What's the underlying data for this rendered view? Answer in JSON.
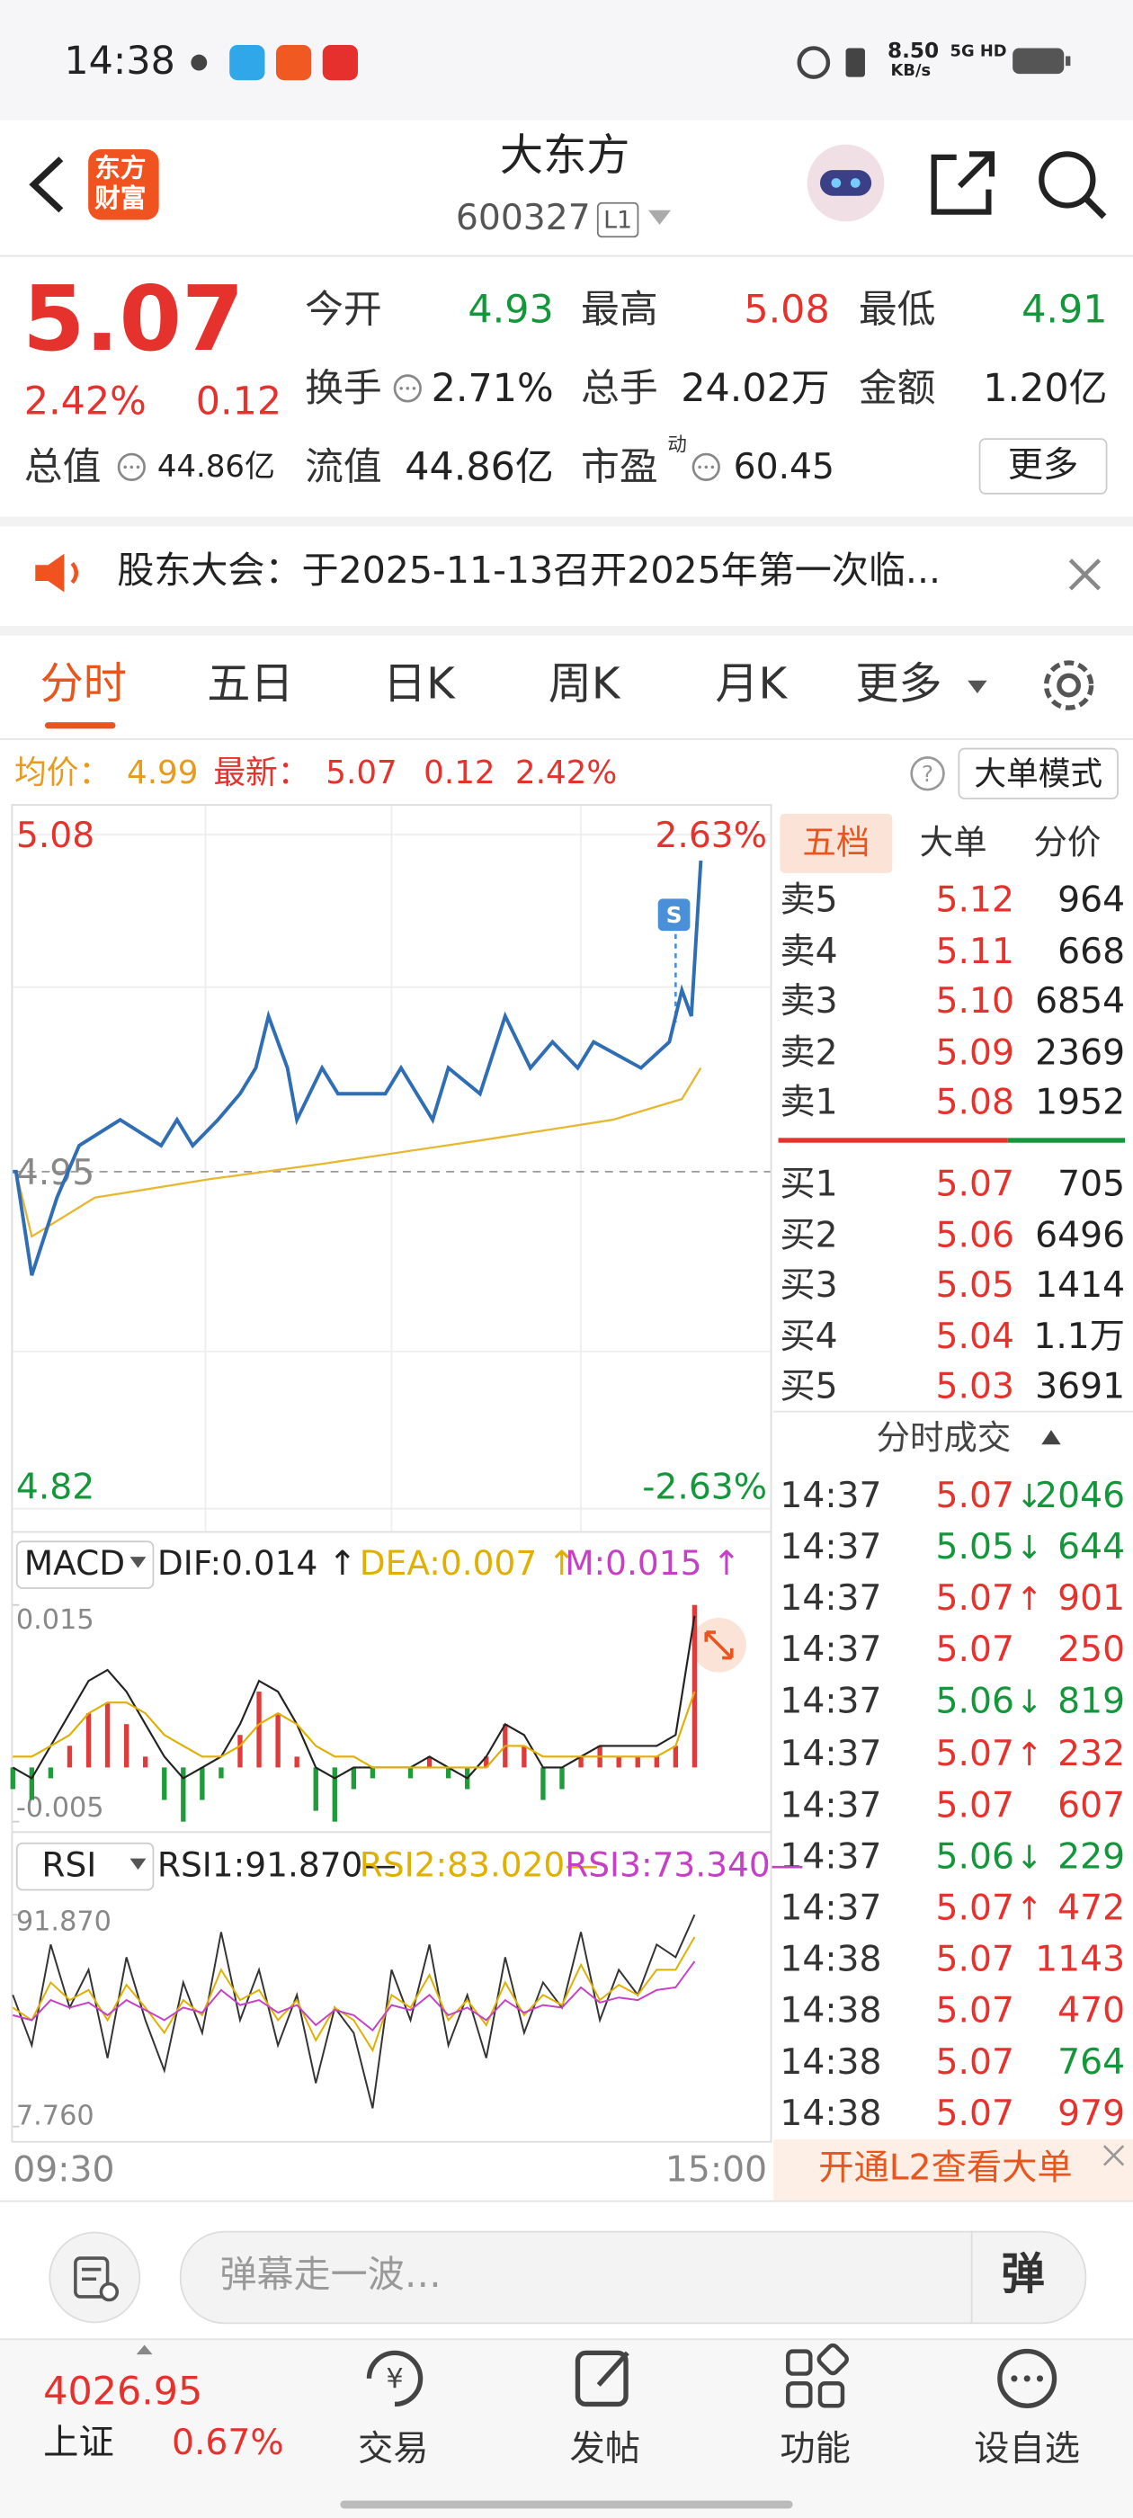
{
  "status_bar": {
    "time": "14:38",
    "speed": "8.50",
    "speed_unit": "KB/s",
    "network": "5G HD"
  },
  "header": {
    "logo": [
      "东方",
      "财富"
    ],
    "title": "大东方",
    "code": "600327",
    "level": "L1"
  },
  "quote": {
    "price": "5.07",
    "change_pct": "2.42%",
    "change": "0.12",
    "open_label": "今开",
    "open": "4.93",
    "high_label": "最高",
    "high": "5.08",
    "low_label": "最低",
    "low": "4.91",
    "turnover_label": "换手",
    "turnover": "2.71%",
    "volume_label": "总手",
    "volume": "24.02万",
    "amount_label": "金额",
    "amount": "1.20亿",
    "total_cap_label": "总值",
    "total_cap": "44.86亿",
    "float_cap_label": "流值",
    "float_cap": "44.86亿",
    "pe_label": "市盈",
    "pe_tag": "动",
    "pe": "60.45",
    "more": "更多"
  },
  "notice": {
    "text": "股东大会：于2025-11-13召开2025年第一次临..."
  },
  "tabs": [
    "分时",
    "五日",
    "日K",
    "周K",
    "月K",
    "更多"
  ],
  "info": {
    "avg_label": "均价：",
    "avg": "4.99",
    "last_label": "最新：",
    "last": "5.07",
    "change": "0.12",
    "change_pct": "2.42%",
    "mode": "大单模式"
  },
  "intraday": {
    "ylim": [
      4.82,
      5.08
    ],
    "yticks": [
      4.82,
      4.95,
      5.08
    ],
    "pct_labels": [
      "2.63%",
      "-2.63%"
    ],
    "xlim": [
      0,
      240
    ],
    "x": [
      0,
      1,
      6,
      14,
      21,
      34,
      47,
      52,
      57,
      65,
      72,
      77,
      81,
      87,
      90,
      98,
      103,
      118,
      123,
      133,
      138,
      148,
      156,
      164,
      171,
      179,
      184,
      199,
      208,
      212,
      215,
      218
    ],
    "price": [
      4.95,
      4.95,
      4.91,
      4.94,
      4.96,
      4.97,
      4.96,
      4.97,
      4.96,
      4.97,
      4.98,
      4.99,
      5.01,
      4.99,
      4.97,
      4.99,
      4.98,
      4.98,
      4.99,
      4.97,
      4.99,
      4.98,
      5.01,
      4.99,
      5.0,
      4.99,
      5.0,
      4.99,
      5.0,
      5.02,
      5.01,
      5.07
    ],
    "avg_x": [
      1,
      6,
      26,
      62,
      98,
      148,
      190,
      212,
      218
    ],
    "avg": [
      4.95,
      4.925,
      4.94,
      4.947,
      4.953,
      4.962,
      4.97,
      4.978,
      4.99
    ],
    "color": "#2f6db5",
    "avg_color": "#e8b730",
    "start": "09:30",
    "end": "15:00"
  },
  "macd": {
    "label": "MACD",
    "dif_label": "DIF:0.014 ↑",
    "dea_label": "DEA:0.007 ↑",
    "m_label": "M:0.015 ↑",
    "ylim": [
      -0.005,
      0.015
    ],
    "yticks": [
      -0.005,
      0.015
    ],
    "x": [
      0,
      6,
      12,
      18,
      24,
      30,
      36,
      42,
      48,
      54,
      60,
      66,
      72,
      78,
      84,
      90,
      96,
      102,
      108,
      114,
      120,
      126,
      132,
      138,
      144,
      150,
      156,
      162,
      168,
      174,
      180,
      186,
      192,
      198,
      204,
      210,
      216
    ],
    "hist": [
      -0.002,
      -0.003,
      -0.001,
      0.002,
      0.005,
      0.006,
      0.004,
      0.001,
      -0.003,
      -0.005,
      -0.003,
      -0.001,
      0.003,
      0.007,
      0.005,
      0.001,
      -0.004,
      -0.005,
      -0.002,
      -0.001,
      0,
      -0.001,
      0.001,
      -0.001,
      -0.002,
      0.001,
      0.004,
      0.002,
      -0.003,
      -0.002,
      0.001,
      0.002,
      0.001,
      0.001,
      0.001,
      0.002,
      0.015
    ],
    "dif": [
      0,
      -0.001,
      0.002,
      0.005,
      0.008,
      0.009,
      0.007,
      0.004,
      0.001,
      -0.001,
      0,
      0.001,
      0.004,
      0.008,
      0.007,
      0.004,
      0,
      -0.001,
      0,
      0,
      0,
      0,
      0.001,
      0,
      -0.001,
      0.001,
      0.004,
      0.003,
      0,
      0,
      0.001,
      0.002,
      0.002,
      0.002,
      0.002,
      0.003,
      0.014
    ],
    "dea": [
      0.001,
      0.001,
      0.002,
      0.003,
      0.005,
      0.006,
      0.006,
      0.005,
      0.003,
      0.002,
      0.001,
      0.001,
      0.002,
      0.004,
      0.005,
      0.004,
      0.002,
      0.001,
      0.001,
      0,
      0,
      0,
      0,
      0,
      0,
      0,
      0.002,
      0.002,
      0.001,
      0.001,
      0.001,
      0.001,
      0.001,
      0.001,
      0.001,
      0.002,
      0.007
    ]
  },
  "rsi": {
    "label": "RSI",
    "ylim": [
      7.76,
      91.87
    ],
    "yticks": [
      {
        "value": 7.76,
        "label": "7.760"
      },
      {
        "value": 91.87,
        "label": "91.870"
      }
    ],
    "series": [
      {
        "label": "RSI1:91.870—",
        "color": "#333333",
        "values": [
          60,
          40,
          80,
          55,
          70,
          35,
          75,
          50,
          30,
          65,
          45,
          85,
          50,
          70,
          40,
          60,
          25,
          55,
          45,
          15,
          70,
          50,
          80,
          40,
          60,
          35,
          75,
          45,
          65,
          55,
          85,
          50,
          70,
          60,
          80,
          75,
          91.87
        ]
      },
      {
        "label": "RSI2:83.020—",
        "color": "#e0b000",
        "values": [
          55,
          50,
          65,
          58,
          62,
          50,
          64,
          55,
          45,
          58,
          52,
          70,
          58,
          62,
          50,
          58,
          42,
          55,
          50,
          38,
          60,
          55,
          68,
          50,
          58,
          48,
          65,
          52,
          60,
          56,
          72,
          58,
          64,
          60,
          70,
          70,
          83.02
        ]
      },
      {
        "label": "RSI3:73.340—",
        "color": "#c640c6",
        "values": [
          52,
          50,
          58,
          55,
          57,
          52,
          58,
          54,
          50,
          55,
          53,
          62,
          56,
          58,
          53,
          56,
          48,
          54,
          52,
          46,
          56,
          54,
          60,
          52,
          55,
          50,
          58,
          53,
          56,
          55,
          63,
          57,
          59,
          58,
          62,
          63,
          73.34
        ]
      }
    ]
  },
  "order_book": {
    "tabs": [
      "五档",
      "大单",
      "分价"
    ],
    "asks": [
      {
        "label": "卖5",
        "price": "5.12",
        "volume": "964"
      },
      {
        "label": "卖4",
        "price": "5.11",
        "volume": "668"
      },
      {
        "label": "卖3",
        "price": "5.10",
        "volume": "6854"
      },
      {
        "label": "卖2",
        "price": "5.09",
        "volume": "2369"
      },
      {
        "label": "卖1",
        "price": "5.08",
        "volume": "1952"
      }
    ],
    "bids": [
      {
        "label": "买1",
        "price": "5.07",
        "volume": "705"
      },
      {
        "label": "买2",
        "price": "5.06",
        "volume": "6496"
      },
      {
        "label": "买3",
        "price": "5.05",
        "volume": "1414"
      },
      {
        "label": "买4",
        "price": "5.04",
        "volume": "1.1万"
      },
      {
        "label": "买5",
        "price": "5.03",
        "volume": "3691"
      }
    ]
  },
  "trades": {
    "title": "分时成交",
    "rows": [
      {
        "time": "14:37",
        "price": "5.07",
        "arrow": "↓",
        "volume": "2046",
        "price_color": "#e5322d",
        "color": "#14963a"
      },
      {
        "time": "14:37",
        "price": "5.05",
        "arrow": "↓",
        "volume": "644",
        "price_color": "#14963a",
        "color": "#14963a"
      },
      {
        "time": "14:37",
        "price": "5.07",
        "arrow": "↑",
        "volume": "901",
        "price_color": "#e5322d",
        "color": "#e5322d"
      },
      {
        "time": "14:37",
        "price": "5.07",
        "volume": "250",
        "price_color": "#e5322d",
        "color": "#e5322d"
      },
      {
        "time": "14:37",
        "price": "5.06",
        "arrow": "↓",
        "volume": "819",
        "price_color": "#14963a",
        "color": "#14963a"
      },
      {
        "time": "14:37",
        "price": "5.07",
        "arrow": "↑",
        "volume": "232",
        "price_color": "#e5322d",
        "color": "#e5322d"
      },
      {
        "time": "14:37",
        "price": "5.07",
        "volume": "607",
        "price_color": "#e5322d",
        "color": "#e5322d"
      },
      {
        "time": "14:37",
        "price": "5.06",
        "arrow": "↓",
        "volume": "229",
        "price_color": "#14963a",
        "color": "#14963a"
      },
      {
        "time": "14:37",
        "price": "5.07",
        "arrow": "↑",
        "volume": "472",
        "price_color": "#e5322d",
        "color": "#e5322d"
      },
      {
        "time": "14:38",
        "price": "5.07",
        "volume": "1143",
        "price_color": "#e5322d",
        "color": "#e5322d"
      },
      {
        "time": "14:38",
        "price": "5.07",
        "volume": "470",
        "price_color": "#e5322d",
        "color": "#e5322d"
      },
      {
        "time": "14:38",
        "price": "5.07",
        "volume": "764",
        "price_color": "#e5322d",
        "color": "#14963a"
      },
      {
        "time": "14:38",
        "price": "5.07",
        "volume": "979",
        "price_color": "#e5322d",
        "color": "#e5322d"
      }
    ]
  },
  "banner": "开通L2查看大单",
  "input": {
    "placeholder": "弹幕走一波…",
    "send": "弹"
  },
  "index": {
    "value": "4026.95",
    "name": "上证",
    "change": "0.67%"
  },
  "nav": [
    "交易",
    "发帖",
    "功能",
    "设自选"
  ]
}
